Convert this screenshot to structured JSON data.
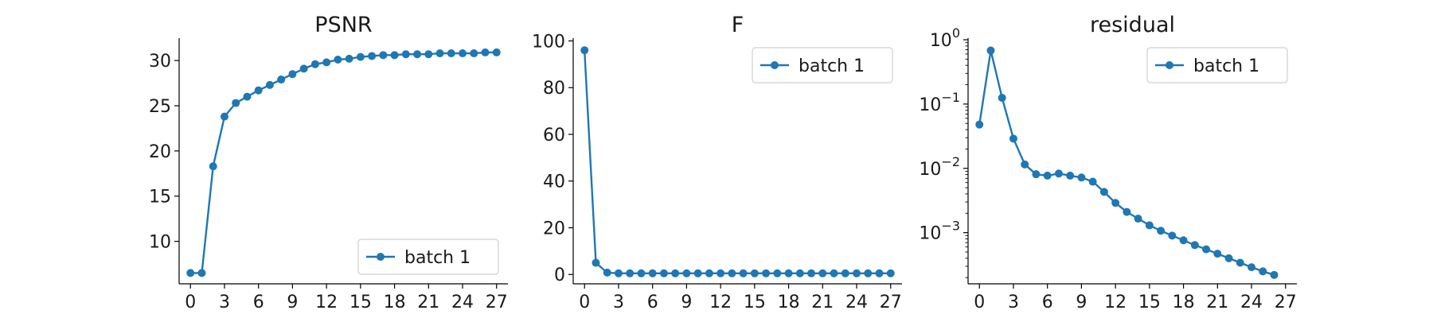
{
  "chart_data": [
    {
      "type": "line",
      "title": "PSNR",
      "yscale": "linear",
      "xlim": [
        -1,
        28
      ],
      "ylim": [
        5.3,
        32.3
      ],
      "xticks": [
        0,
        3,
        6,
        9,
        12,
        15,
        18,
        21,
        24,
        27
      ],
      "xtick_labels": [
        "0",
        "3",
        "6",
        "9",
        "12",
        "15",
        "18",
        "21",
        "24",
        "27"
      ],
      "yticks": [
        10,
        15,
        20,
        25,
        30
      ],
      "ytick_labels": [
        "10",
        "15",
        "20",
        "25",
        "30"
      ],
      "legend_position": "lower-right",
      "series": [
        {
          "name": "batch 1",
          "color": "#1f77b4",
          "x": [
            0,
            1,
            2,
            3,
            4,
            5,
            6,
            7,
            8,
            9,
            10,
            11,
            12,
            13,
            14,
            15,
            16,
            17,
            18,
            19,
            20,
            21,
            22,
            23,
            24,
            25,
            26,
            27
          ],
          "y": [
            6.5,
            6.5,
            18.3,
            23.8,
            25.3,
            26.0,
            26.7,
            27.3,
            27.9,
            28.5,
            29.1,
            29.6,
            29.8,
            30.1,
            30.2,
            30.4,
            30.5,
            30.6,
            30.6,
            30.7,
            30.7,
            30.7,
            30.8,
            30.8,
            30.8,
            30.8,
            30.9,
            30.9
          ]
        }
      ]
    },
    {
      "type": "line",
      "title": "F",
      "yscale": "linear",
      "xlim": [
        -1,
        28
      ],
      "ylim": [
        -4,
        100.5
      ],
      "xticks": [
        0,
        3,
        6,
        9,
        12,
        15,
        18,
        21,
        24,
        27
      ],
      "xtick_labels": [
        "0",
        "3",
        "6",
        "9",
        "12",
        "15",
        "18",
        "21",
        "24",
        "27"
      ],
      "yticks": [
        0,
        20,
        40,
        60,
        80,
        100
      ],
      "ytick_labels": [
        "0",
        "20",
        "40",
        "60",
        "80",
        "100"
      ],
      "legend_position": "upper-right",
      "series": [
        {
          "name": "batch 1",
          "color": "#1f77b4",
          "x": [
            0,
            1,
            2,
            3,
            4,
            5,
            6,
            7,
            8,
            9,
            10,
            11,
            12,
            13,
            14,
            15,
            16,
            17,
            18,
            19,
            20,
            21,
            22,
            23,
            24,
            25,
            26,
            27
          ],
          "y": [
            96,
            5,
            0.8,
            0.5,
            0.5,
            0.5,
            0.5,
            0.5,
            0.5,
            0.5,
            0.5,
            0.5,
            0.5,
            0.5,
            0.5,
            0.5,
            0.5,
            0.5,
            0.5,
            0.5,
            0.5,
            0.5,
            0.5,
            0.5,
            0.5,
            0.5,
            0.5,
            0.5
          ]
        }
      ]
    },
    {
      "type": "line",
      "title": "residual",
      "yscale": "log",
      "xlim": [
        -1,
        28
      ],
      "ylim": [
        0.00016,
        1
      ],
      "xticks": [
        0,
        3,
        6,
        9,
        12,
        15,
        18,
        21,
        24,
        27
      ],
      "xtick_labels": [
        "0",
        "3",
        "6",
        "9",
        "12",
        "15",
        "18",
        "21",
        "24",
        "27"
      ],
      "yticks": [
        0.001,
        0.01,
        0.1,
        1
      ],
      "ytick_base": [
        "10",
        "10",
        "10",
        "10"
      ],
      "ytick_exponents": [
        "−3",
        "−2",
        "−1",
        "0"
      ],
      "legend_position": "upper-right",
      "series": [
        {
          "name": "batch 1",
          "color": "#1f77b4",
          "x": [
            0,
            1,
            2,
            3,
            4,
            5,
            6,
            7,
            8,
            9,
            10,
            11,
            12,
            13,
            14,
            15,
            16,
            17,
            18,
            19,
            20,
            21,
            22,
            23,
            24,
            25,
            26
          ],
          "y": [
            0.048,
            0.68,
            0.125,
            0.029,
            0.0115,
            0.0081,
            0.0077,
            0.0083,
            0.0077,
            0.0072,
            0.0062,
            0.0043,
            0.0029,
            0.0021,
            0.00165,
            0.0013,
            0.00107,
            0.0009,
            0.00076,
            0.00064,
            0.00055,
            0.00047,
            0.0004,
            0.00034,
            0.00029,
            0.00025,
            0.00022
          ]
        }
      ]
    }
  ]
}
